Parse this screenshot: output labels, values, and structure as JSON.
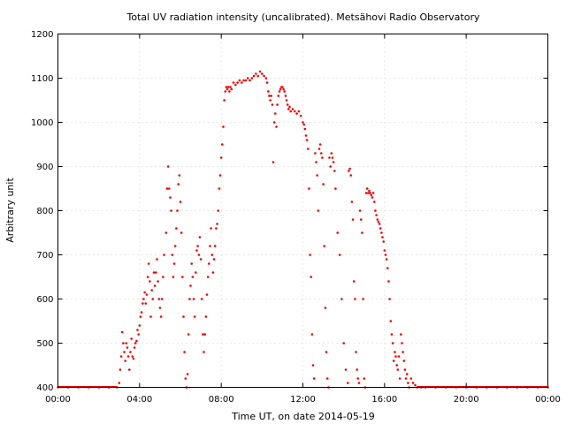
{
  "chart_data": {
    "type": "scatter",
    "title": "Total UV radiation intensity (uncalibrated). Metsähovi Radio Observatory",
    "xlabel": "Time UT, on date 2014-05-19",
    "ylabel": "Arbitrary unit",
    "xlim": [
      0,
      24
    ],
    "ylim": [
      400,
      1200
    ],
    "x_ticks": [
      0,
      4,
      8,
      12,
      16,
      20,
      24
    ],
    "x_tick_labels": [
      "00:00",
      "04:00",
      "08:00",
      "12:00",
      "16:00",
      "20:00",
      "00:00"
    ],
    "y_ticks": [
      400,
      500,
      600,
      700,
      800,
      900,
      1000,
      1100,
      1200
    ],
    "y_tick_labels": [
      "400",
      "500",
      "600",
      "700",
      "800",
      "900",
      "1000",
      "1100",
      "1200"
    ],
    "grid": true,
    "point_color": "#ee0000",
    "series": [
      {
        "points": [
          [
            0,
            400
          ],
          [
            0.5,
            400
          ],
          [
            1,
            400
          ],
          [
            1.5,
            400
          ],
          [
            2,
            400
          ],
          [
            2.5,
            400
          ],
          [
            2.9,
            400
          ],
          [
            3.0,
            410
          ],
          [
            3.05,
            440
          ],
          [
            3.1,
            470
          ],
          [
            3.15,
            525
          ],
          [
            3.2,
            500
          ],
          [
            3.25,
            480
          ],
          [
            3.3,
            460
          ],
          [
            3.35,
            500
          ],
          [
            3.4,
            490
          ],
          [
            3.45,
            470
          ],
          [
            3.5,
            440
          ],
          [
            3.55,
            480
          ],
          [
            3.6,
            510
          ],
          [
            3.65,
            470
          ],
          [
            3.7,
            465
          ],
          [
            3.75,
            490
          ],
          [
            3.8,
            500
          ],
          [
            3.85,
            505
          ],
          [
            3.9,
            530
          ],
          [
            3.95,
            520
          ],
          [
            4.0,
            540
          ],
          [
            4.05,
            560
          ],
          [
            4.1,
            570
          ],
          [
            4.15,
            590
          ],
          [
            4.2,
            600
          ],
          [
            4.25,
            615
          ],
          [
            4.3,
            590
          ],
          [
            4.35,
            610
          ],
          [
            4.4,
            650
          ],
          [
            4.45,
            680
          ],
          [
            4.5,
            640
          ],
          [
            4.55,
            560
          ],
          [
            4.6,
            620
          ],
          [
            4.65,
            600
          ],
          [
            4.7,
            660
          ],
          [
            4.75,
            630
          ],
          [
            4.8,
            660
          ],
          [
            4.85,
            690
          ],
          [
            4.9,
            640
          ],
          [
            4.95,
            600
          ],
          [
            5.0,
            580
          ],
          [
            5.05,
            560
          ],
          [
            5.1,
            600
          ],
          [
            5.15,
            650
          ],
          [
            5.2,
            700
          ],
          [
            5.3,
            750
          ],
          [
            5.35,
            850
          ],
          [
            5.4,
            900
          ],
          [
            5.45,
            850
          ],
          [
            5.5,
            830
          ],
          [
            5.55,
            800
          ],
          [
            5.6,
            700
          ],
          [
            5.65,
            650
          ],
          [
            5.7,
            680
          ],
          [
            5.75,
            720
          ],
          [
            5.8,
            760
          ],
          [
            5.85,
            800
          ],
          [
            5.9,
            860
          ],
          [
            5.95,
            880
          ],
          [
            6.0,
            820
          ],
          [
            6.05,
            750
          ],
          [
            6.1,
            650
          ],
          [
            6.15,
            560
          ],
          [
            6.2,
            480
          ],
          [
            6.25,
            420
          ],
          [
            6.3,
            400
          ],
          [
            6.35,
            430
          ],
          [
            6.4,
            520
          ],
          [
            6.45,
            600
          ],
          [
            6.5,
            630
          ],
          [
            6.55,
            680
          ],
          [
            6.6,
            650
          ],
          [
            6.65,
            600
          ],
          [
            6.7,
            560
          ],
          [
            6.75,
            660
          ],
          [
            6.8,
            710
          ],
          [
            6.85,
            720
          ],
          [
            6.9,
            700
          ],
          [
            6.95,
            740
          ],
          [
            7.0,
            690
          ],
          [
            7.05,
            600
          ],
          [
            7.1,
            520
          ],
          [
            7.15,
            480
          ],
          [
            7.2,
            520
          ],
          [
            7.25,
            560
          ],
          [
            7.3,
            610
          ],
          [
            7.35,
            650
          ],
          [
            7.4,
            680
          ],
          [
            7.45,
            720
          ],
          [
            7.5,
            760
          ],
          [
            7.55,
            700
          ],
          [
            7.6,
            660
          ],
          [
            7.65,
            690
          ],
          [
            7.7,
            720
          ],
          [
            7.75,
            760
          ],
          [
            7.8,
            770
          ],
          [
            7.85,
            800
          ],
          [
            7.9,
            850
          ],
          [
            7.95,
            880
          ],
          [
            8.0,
            920
          ],
          [
            8.05,
            950
          ],
          [
            8.1,
            990
          ],
          [
            8.15,
            1050
          ],
          [
            8.2,
            1070
          ],
          [
            8.25,
            1080
          ],
          [
            8.3,
            1075
          ],
          [
            8.35,
            1080
          ],
          [
            8.4,
            1070
          ],
          [
            8.45,
            1080
          ],
          [
            8.5,
            1075
          ],
          [
            8.6,
            1090
          ],
          [
            8.7,
            1085
          ],
          [
            8.8,
            1090
          ],
          [
            8.9,
            1095
          ],
          [
            9.0,
            1090
          ],
          [
            9.1,
            1095
          ],
          [
            9.2,
            1095
          ],
          [
            9.3,
            1100
          ],
          [
            9.4,
            1095
          ],
          [
            9.5,
            1100
          ],
          [
            9.6,
            1105
          ],
          [
            9.7,
            1110
          ],
          [
            9.8,
            1105
          ],
          [
            9.9,
            1115
          ],
          [
            10.0,
            1110
          ],
          [
            10.1,
            1105
          ],
          [
            10.2,
            1100
          ],
          [
            10.25,
            1090
          ],
          [
            10.3,
            1070
          ],
          [
            10.35,
            1060
          ],
          [
            10.4,
            1050
          ],
          [
            10.45,
            1060
          ],
          [
            10.5,
            1040
          ],
          [
            10.55,
            910
          ],
          [
            10.6,
            1000
          ],
          [
            10.65,
            1020
          ],
          [
            10.7,
            990
          ],
          [
            10.75,
            1040
          ],
          [
            10.8,
            1060
          ],
          [
            10.85,
            1070
          ],
          [
            10.9,
            1075
          ],
          [
            10.95,
            1080
          ],
          [
            11.0,
            1080
          ],
          [
            11.05,
            1075
          ],
          [
            11.1,
            1070
          ],
          [
            11.15,
            1060
          ],
          [
            11.2,
            1050
          ],
          [
            11.25,
            1040
          ],
          [
            11.3,
            1030
          ],
          [
            11.35,
            1035
          ],
          [
            11.4,
            1025
          ],
          [
            11.5,
            1030
          ],
          [
            11.6,
            1025
          ],
          [
            11.7,
            1020
          ],
          [
            11.8,
            1025
          ],
          [
            11.9,
            1015
          ],
          [
            12.0,
            1000
          ],
          [
            12.05,
            995
          ],
          [
            12.1,
            985
          ],
          [
            12.15,
            970
          ],
          [
            12.2,
            960
          ],
          [
            12.25,
            940
          ],
          [
            12.3,
            850
          ],
          [
            12.35,
            700
          ],
          [
            12.4,
            650
          ],
          [
            12.45,
            520
          ],
          [
            12.5,
            450
          ],
          [
            12.55,
            420
          ],
          [
            12.6,
            930
          ],
          [
            12.65,
            910
          ],
          [
            12.7,
            880
          ],
          [
            12.75,
            800
          ],
          [
            12.8,
            940
          ],
          [
            12.85,
            950
          ],
          [
            12.9,
            930
          ],
          [
            12.95,
            920
          ],
          [
            13.0,
            860
          ],
          [
            13.05,
            720
          ],
          [
            13.1,
            580
          ],
          [
            13.15,
            480
          ],
          [
            13.2,
            420
          ],
          [
            13.25,
            400
          ],
          [
            13.3,
            920
          ],
          [
            13.35,
            900
          ],
          [
            13.4,
            930
          ],
          [
            13.45,
            920
          ],
          [
            13.5,
            910
          ],
          [
            13.55,
            890
          ],
          [
            13.6,
            850
          ],
          [
            13.7,
            750
          ],
          [
            13.8,
            700
          ],
          [
            13.9,
            600
          ],
          [
            14.0,
            500
          ],
          [
            14.1,
            440
          ],
          [
            14.2,
            410
          ],
          [
            14.25,
            890
          ],
          [
            14.3,
            895
          ],
          [
            14.35,
            880
          ],
          [
            14.4,
            820
          ],
          [
            14.45,
            780
          ],
          [
            14.5,
            640
          ],
          [
            14.55,
            600
          ],
          [
            14.6,
            480
          ],
          [
            14.65,
            440
          ],
          [
            14.7,
            420
          ],
          [
            14.75,
            410
          ],
          [
            14.8,
            800
          ],
          [
            14.85,
            780
          ],
          [
            14.9,
            750
          ],
          [
            14.95,
            600
          ],
          [
            15.0,
            420
          ],
          [
            15.05,
            400
          ],
          [
            15.1,
            840
          ],
          [
            15.15,
            850
          ],
          [
            15.2,
            840
          ],
          [
            15.25,
            845
          ],
          [
            15.3,
            840
          ],
          [
            15.35,
            835
          ],
          [
            15.4,
            830
          ],
          [
            15.45,
            840
          ],
          [
            15.5,
            820
          ],
          [
            15.55,
            800
          ],
          [
            15.6,
            790
          ],
          [
            15.65,
            780
          ],
          [
            15.7,
            775
          ],
          [
            15.75,
            770
          ],
          [
            15.8,
            760
          ],
          [
            15.85,
            750
          ],
          [
            15.9,
            740
          ],
          [
            15.95,
            730
          ],
          [
            16.0,
            710
          ],
          [
            16.05,
            700
          ],
          [
            16.1,
            690
          ],
          [
            16.15,
            670
          ],
          [
            16.2,
            640
          ],
          [
            16.25,
            600
          ],
          [
            16.3,
            550
          ],
          [
            16.35,
            520
          ],
          [
            16.4,
            500
          ],
          [
            16.45,
            460
          ],
          [
            16.5,
            480
          ],
          [
            16.55,
            470
          ],
          [
            16.6,
            450
          ],
          [
            16.65,
            440
          ],
          [
            16.7,
            470
          ],
          [
            16.75,
            420
          ],
          [
            16.8,
            520
          ],
          [
            16.85,
            500
          ],
          [
            16.9,
            480
          ],
          [
            16.95,
            460
          ],
          [
            17.0,
            440
          ],
          [
            17.05,
            420
          ],
          [
            17.1,
            430
          ],
          [
            17.15,
            410
          ],
          [
            17.2,
            400
          ],
          [
            17.3,
            420
          ],
          [
            17.4,
            410
          ],
          [
            17.5,
            405
          ],
          [
            17.6,
            400
          ],
          [
            17.8,
            400
          ],
          [
            18.0,
            400
          ],
          [
            18.5,
            400
          ],
          [
            19,
            400
          ],
          [
            19.5,
            400
          ],
          [
            20,
            400
          ],
          [
            20.5,
            400
          ],
          [
            21,
            400
          ],
          [
            21.5,
            400
          ],
          [
            22,
            400
          ],
          [
            22.5,
            400
          ],
          [
            23,
            400
          ],
          [
            23.5,
            400
          ],
          [
            24,
            400
          ]
        ]
      }
    ]
  }
}
